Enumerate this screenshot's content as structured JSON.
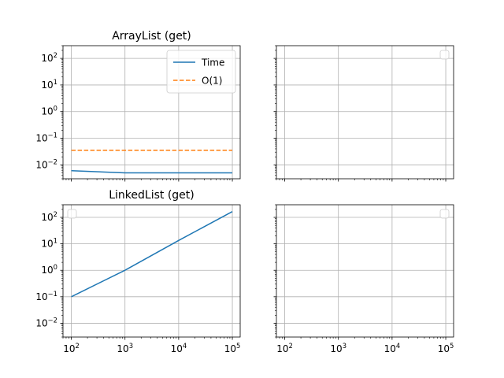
{
  "chart_data": [
    {
      "type": "line",
      "title": "ArrayList (get)",
      "xscale": "log",
      "yscale": "log",
      "xlim": [
        70,
        140000
      ],
      "ylim": [
        0.003,
        300
      ],
      "grid": true,
      "legend": "top-right",
      "x_tick_labels_shown": false,
      "y_tick_labels_shown": true,
      "series": [
        {
          "name": "Time",
          "color": "#1f77b4",
          "style": "solid",
          "x": [
            100,
            1000,
            10000,
            100000
          ],
          "y": [
            0.006,
            0.005,
            0.005,
            0.005
          ]
        },
        {
          "name": "O(1)",
          "color": "#ff7f0e",
          "style": "dashed",
          "x": [
            100,
            1000,
            10000,
            100000
          ],
          "y": [
            0.035,
            0.035,
            0.035,
            0.035
          ]
        }
      ]
    },
    {
      "type": "line",
      "title": "",
      "xscale": "log",
      "yscale": "log",
      "xlim": [
        70,
        140000
      ],
      "ylim": [
        0.003,
        300
      ],
      "grid": true,
      "legend": "top-right",
      "x_tick_labels_shown": false,
      "y_tick_labels_shown": false,
      "series": []
    },
    {
      "type": "line",
      "title": "LinkedList (get)",
      "xscale": "log",
      "yscale": "log",
      "xlim": [
        70,
        140000
      ],
      "ylim": [
        0.003,
        300
      ],
      "grid": true,
      "legend": "top-left",
      "x_tick_labels_shown": true,
      "y_tick_labels_shown": true,
      "series": [
        {
          "name": "",
          "color": "#1f77b4",
          "style": "solid",
          "x": [
            100,
            1000,
            10000,
            100000
          ],
          "y": [
            0.1,
            1.0,
            13.5,
            165
          ]
        }
      ]
    },
    {
      "type": "line",
      "title": "",
      "xscale": "log",
      "yscale": "log",
      "xlim": [
        70,
        140000
      ],
      "ylim": [
        0.003,
        300
      ],
      "grid": true,
      "legend": "top-right",
      "x_tick_labels_shown": true,
      "y_tick_labels_shown": false,
      "series": []
    }
  ],
  "tick_labels": {
    "x": [
      {
        "value": 100,
        "base": "10",
        "exp": "2"
      },
      {
        "value": 1000,
        "base": "10",
        "exp": "3"
      },
      {
        "value": 10000,
        "base": "10",
        "exp": "4"
      },
      {
        "value": 100000,
        "base": "10",
        "exp": "5"
      }
    ],
    "y": [
      {
        "value": 0.01,
        "base": "10",
        "exp": "−2"
      },
      {
        "value": 0.1,
        "base": "10",
        "exp": "−1"
      },
      {
        "value": 1,
        "base": "10",
        "exp": "0"
      },
      {
        "value": 10,
        "base": "10",
        "exp": "1"
      },
      {
        "value": 100,
        "base": "10",
        "exp": "2"
      }
    ]
  },
  "colors": {
    "grid": "#b0b0b0",
    "axes": "#000000",
    "background": "#ffffff"
  }
}
